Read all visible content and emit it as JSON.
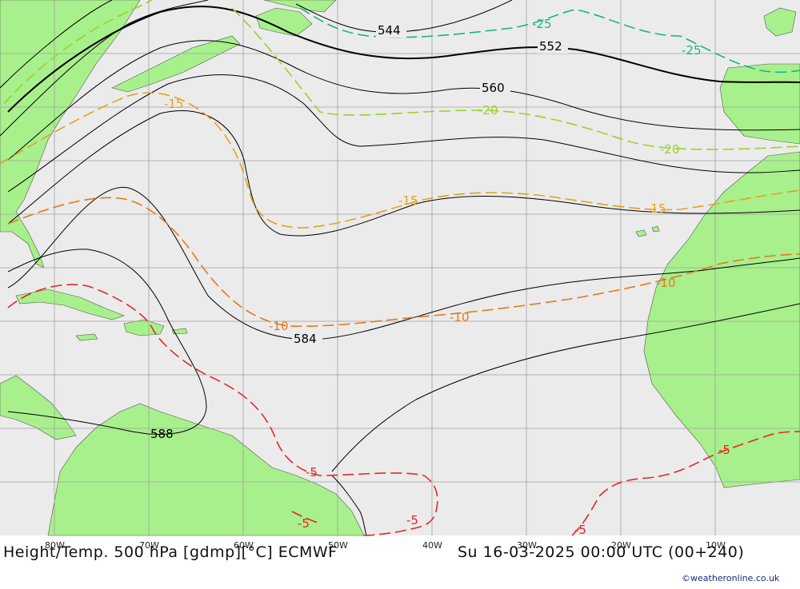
{
  "title": "Height/Temp. 500 hPa [gdmp][°C] ECMWF",
  "valid_time": "Su 16-03-2025 00:00 UTC (00+240)",
  "credit": "©weatheronline.co.uk",
  "longitude_labels": [
    "80W",
    "70W",
    "60W",
    "50W",
    "40W",
    "30W",
    "20W",
    "10W"
  ],
  "height_labels": [
    "544",
    "552",
    "560",
    "584",
    "588"
  ],
  "temperature_labels": {
    "t_minus25": "-25",
    "t_minus20": "-20",
    "t_minus15": "-15",
    "t_minus10": "-10",
    "t_minus5": "-5"
  },
  "colors": {
    "ocean": "#ebebeb",
    "land": "#a8f08c",
    "grid": "#a0a0a0",
    "height_contour": "#000000",
    "isotherm_minus25": "#19b48c",
    "isotherm_minus20": "#9ad22a",
    "isotherm_minus15": "#e6a01e",
    "isotherm_minus10": "#e6781e",
    "isotherm_minus5": "#e62828"
  }
}
